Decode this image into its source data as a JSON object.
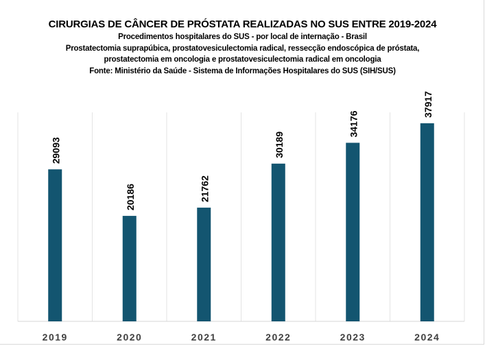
{
  "chart_data": {
    "type": "bar",
    "title": "CIRURGIAS DE CÂNCER DE PRÓSTATA REALIZADAS NO SUS ENTRE 2019-2024",
    "subtitles": [
      "Procedimentos hospitalares do SUS - por local de internação - Brasil",
      "Prostatectomia suprapúbica, prostatovesiculectomia radical, ressecção endoscópica de próstata,",
      "prostatectomia em oncologia e prostatovesiculectomia radical em oncologia",
      "Fonte: Ministério da Saúde - Sistema de Informações Hospitalares do SUS (SIH/SUS)"
    ],
    "categories": [
      "2019",
      "2020",
      "2021",
      "2022",
      "2023",
      "2024"
    ],
    "values": [
      29093,
      20186,
      21762,
      30189,
      34176,
      37917
    ],
    "xlabel": "",
    "ylabel": "",
    "ylim": [
      0,
      40000
    ],
    "grid": "vertical category separators",
    "legend": "none",
    "bar_color": "#135570"
  }
}
